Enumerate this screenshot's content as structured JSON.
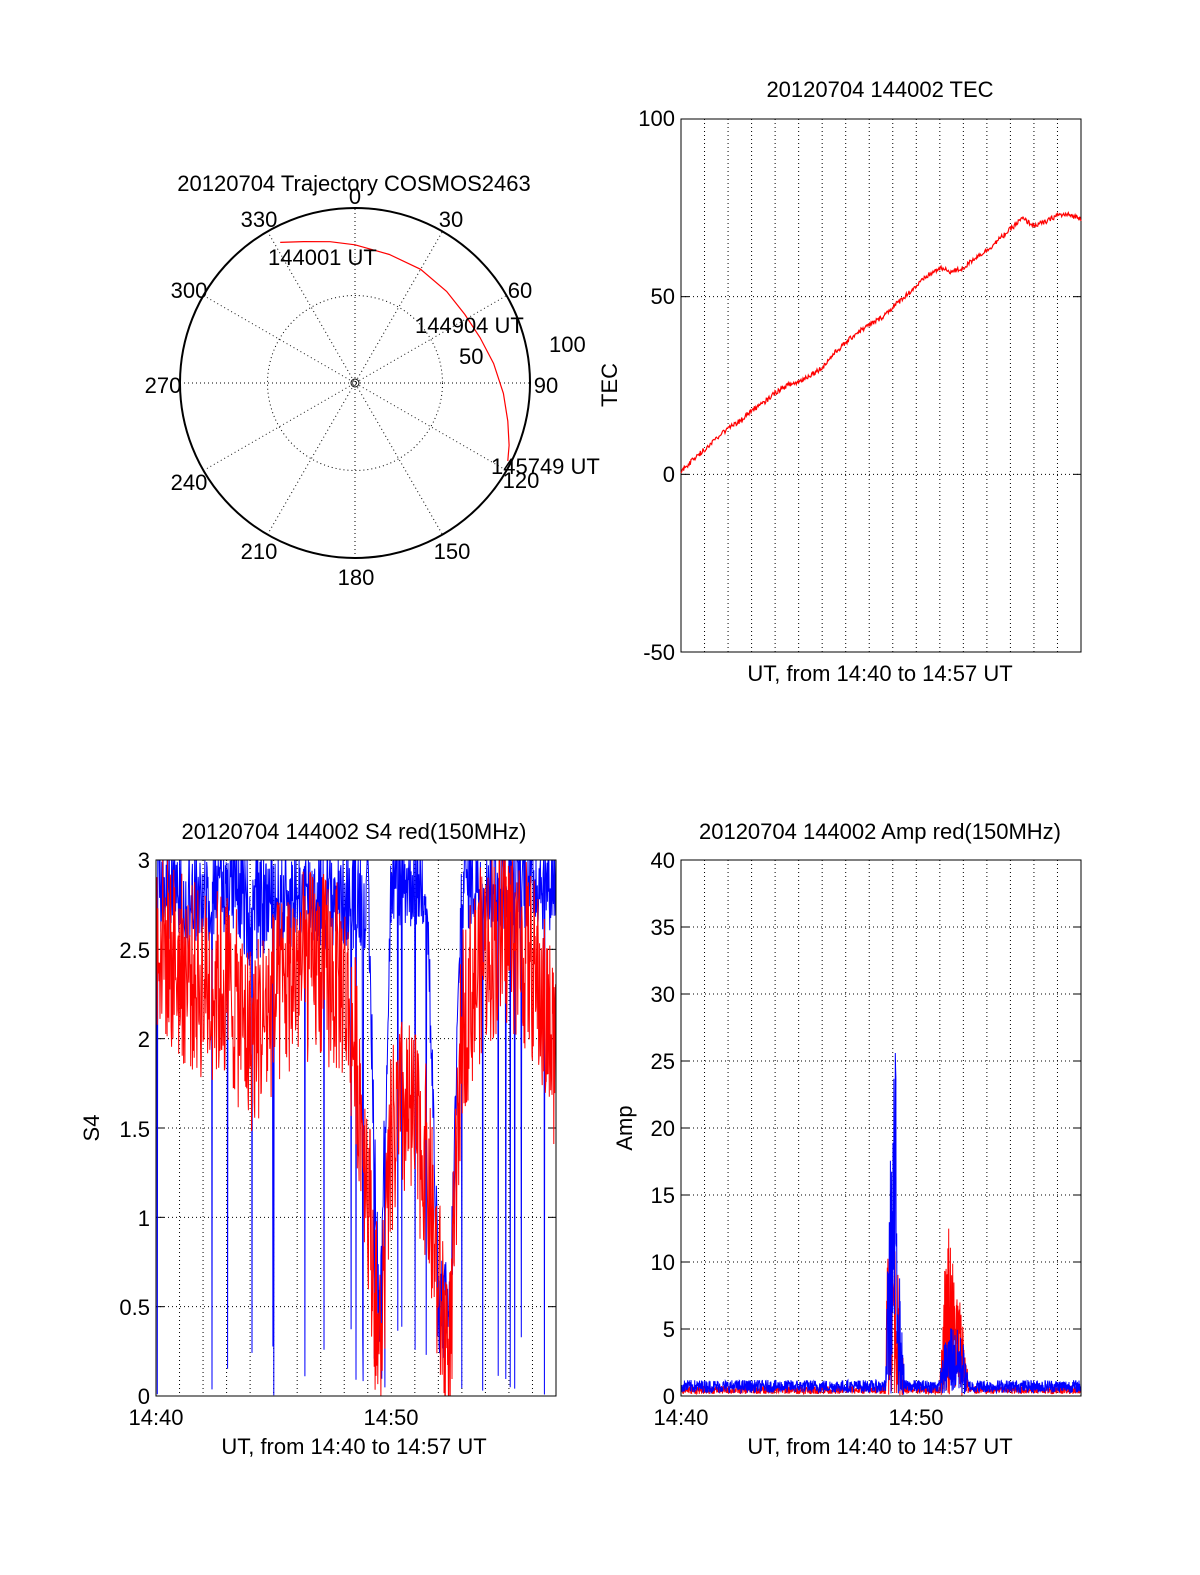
{
  "chart_data": [
    {
      "type": "polar",
      "title": "20120704 Trajectory COSMOS2463",
      "azimuth_labels": [
        "0",
        "30",
        "60",
        "90",
        "120",
        "150",
        "180",
        "210",
        "240",
        "270",
        "300",
        "330"
      ],
      "radial_labels": [
        "50",
        "100"
      ],
      "elevation_range": [
        0,
        100
      ],
      "annotations": [
        "144001 UT",
        "144904 UT",
        "145749 UT"
      ],
      "colors": {
        "trajectory": "#ff0000"
      },
      "trajectory": [
        {
          "az": 332,
          "el": 9
        },
        {
          "az": 340,
          "el": 14
        },
        {
          "az": 350,
          "el": 18
        },
        {
          "az": 0,
          "el": 21
        },
        {
          "az": 15,
          "el": 24
        },
        {
          "az": 30,
          "el": 25
        },
        {
          "az": 45,
          "el": 26
        },
        {
          "az": 58,
          "el": 26
        },
        {
          "az": 70,
          "el": 24
        },
        {
          "az": 82,
          "el": 20
        },
        {
          "az": 94,
          "el": 15
        },
        {
          "az": 104,
          "el": 10
        },
        {
          "az": 112,
          "el": 5
        },
        {
          "az": 117,
          "el": 2
        }
      ]
    },
    {
      "type": "line",
      "title": "20120704 144002 TEC",
      "xlabel": "UT, from 14:40 to 14:57 UT",
      "ylabel": "TEC",
      "xlim": [
        0,
        17
      ],
      "ylim": [
        -50,
        100
      ],
      "yticks": [
        "-50",
        "0",
        "50",
        "100"
      ],
      "grid": true,
      "colors": {
        "tec": "#ff0000"
      },
      "series": [
        {
          "x": [
            0,
            0.5,
            1,
            1.5,
            2,
            2.5,
            3,
            3.5,
            4,
            4.5,
            5,
            5.5,
            6,
            6.5,
            7,
            7.5,
            8,
            8.5,
            9,
            9.5,
            10,
            10.5,
            11,
            11.5,
            12,
            12.5,
            13,
            13.5,
            14,
            14.5,
            15,
            15.5,
            16,
            16.5,
            17
          ],
          "values": [
            1,
            4,
            7,
            10,
            13,
            15,
            18,
            20,
            23,
            25,
            26,
            28,
            30,
            34,
            37,
            40,
            42,
            44,
            47,
            50,
            53,
            56,
            58,
            57,
            58,
            61,
            63,
            66,
            69,
            72,
            70,
            71,
            73,
            73,
            72
          ]
        }
      ]
    },
    {
      "type": "line",
      "title": "20120704 144002 S4 red(150MHz)",
      "xlabel": "UT, from 14:40 to 14:57 UT",
      "ylabel": "S4",
      "xlim": [
        0,
        17
      ],
      "ylim": [
        0,
        3
      ],
      "yticks": [
        "0",
        "0.5",
        "1",
        "1.5",
        "2",
        "2.5",
        "3"
      ],
      "xticks": [
        "14:40",
        "14:50"
      ],
      "grid": true,
      "colors": {
        "red": "#ff0000",
        "blue": "#0000ff"
      },
      "series": [
        {
          "color": "red",
          "x": [
            0,
            1,
            2,
            3,
            4,
            5,
            6,
            7,
            8,
            8.5,
            9,
            9.5,
            10,
            10.5,
            11,
            11.5,
            12,
            12.5,
            13,
            14,
            15,
            16,
            17
          ],
          "values": [
            2.6,
            2.4,
            2.3,
            2.3,
            2.0,
            2.2,
            2.4,
            2.4,
            2.3,
            1.9,
            1.2,
            0.2,
            1.4,
            1.6,
            1.5,
            1.3,
            0.6,
            0.2,
            2.1,
            2.5,
            2.6,
            2.4,
            1.9
          ]
        },
        {
          "color": "blue",
          "x": [
            0,
            1,
            2,
            3,
            4,
            5,
            6,
            7,
            8,
            8.5,
            9,
            9.5,
            10,
            10.5,
            11,
            11.5,
            12,
            12.5,
            13,
            14,
            15,
            16,
            17
          ],
          "values": [
            2.9,
            2.8,
            2.8,
            2.9,
            2.7,
            2.8,
            2.8,
            2.8,
            2.8,
            2.8,
            2.8,
            0.35,
            2.9,
            2.9,
            2.9,
            2.9,
            0.5,
            0.45,
            2.9,
            2.9,
            2.9,
            2.9,
            2.9
          ]
        }
      ]
    },
    {
      "type": "line",
      "title": "20120704 144002 Amp red(150MHz)",
      "xlabel": "UT, from 14:40 to 14:57 UT",
      "ylabel": "Amp",
      "xlim": [
        0,
        17
      ],
      "ylim": [
        0,
        40
      ],
      "yticks": [
        "0",
        "5",
        "10",
        "15",
        "20",
        "25",
        "30",
        "35",
        "40"
      ],
      "xticks": [
        "14:40",
        "14:50"
      ],
      "grid": true,
      "colors": {
        "red": "#ff0000",
        "blue": "#0000ff"
      },
      "series": [
        {
          "color": "red",
          "x": [
            0,
            8.7,
            8.8,
            8.9,
            9.0,
            9.1,
            9.2,
            9.3,
            9.5,
            11.0,
            11.2,
            11.4,
            11.5,
            11.6,
            11.8,
            12.0,
            12.2,
            17
          ],
          "values": [
            0.5,
            0.5,
            17,
            16,
            14,
            12,
            10,
            5,
            0.5,
            0.5,
            10,
            14,
            12,
            9,
            8,
            6,
            0.5,
            0.5
          ]
        },
        {
          "color": "blue",
          "x": [
            0,
            8.7,
            8.8,
            8.9,
            9.0,
            9.1,
            9.2,
            9.3,
            9.5,
            11.0,
            11.2,
            11.4,
            11.5,
            11.6,
            11.8,
            12.0,
            12.2,
            17
          ],
          "values": [
            0.8,
            0.8,
            12,
            18,
            22,
            27,
            20,
            8,
            0.8,
            0.8,
            4,
            5,
            6,
            5,
            5,
            4,
            0.8,
            0.8
          ]
        }
      ]
    }
  ]
}
